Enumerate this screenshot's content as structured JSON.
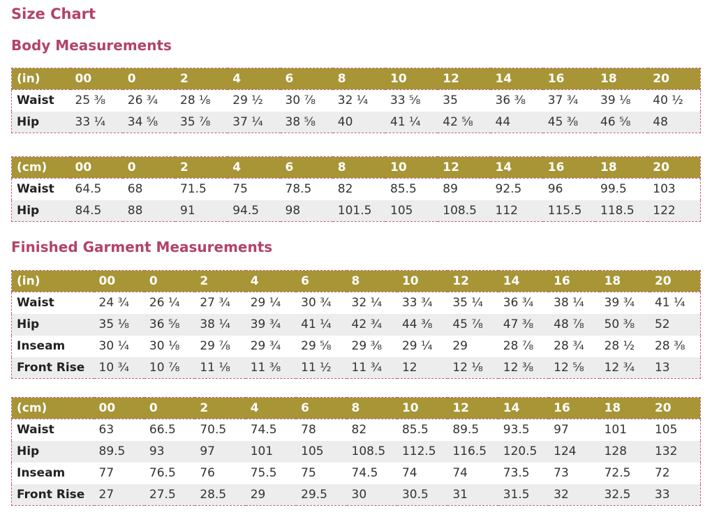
{
  "title": "Size Chart",
  "colors": {
    "heading": "#b2426b",
    "header_row": "#a79536",
    "stripe": "#ededed",
    "border": "#c35d7c"
  },
  "sections": [
    {
      "title": "Body Measurements",
      "tables": [
        {
          "unit": "(in)",
          "sizes": [
            "00",
            "0",
            "2",
            "4",
            "6",
            "8",
            "10",
            "12",
            "14",
            "16",
            "18",
            "20"
          ],
          "rows": [
            {
              "label": "Waist",
              "values": [
                "25 ⅜",
                "26 ¾",
                "28 ⅛",
                "29 ½",
                "30 ⅞",
                "32 ¼",
                "33 ⅝",
                "35",
                "36 ⅜",
                "37 ¾",
                "39 ⅛",
                "40 ½"
              ]
            },
            {
              "label": "Hip",
              "values": [
                "33 ¼",
                "34 ⅝",
                "35 ⅞",
                "37 ¼",
                "38 ⅝",
                "40",
                "41 ¼",
                "42 ⅝",
                "44",
                "45 ⅜",
                "46 ⅝",
                "48"
              ]
            }
          ]
        },
        {
          "unit": "(cm)",
          "sizes": [
            "00",
            "0",
            "2",
            "4",
            "6",
            "8",
            "10",
            "12",
            "14",
            "16",
            "18",
            "20"
          ],
          "rows": [
            {
              "label": "Waist",
              "values": [
                "64.5",
                "68",
                "71.5",
                "75",
                "78.5",
                "82",
                "85.5",
                "89",
                "92.5",
                "96",
                "99.5",
                "103"
              ]
            },
            {
              "label": "Hip",
              "values": [
                "84.5",
                "88",
                "91",
                "94.5",
                "98",
                "101.5",
                "105",
                "108.5",
                "112",
                "115.5",
                "118.5",
                "122"
              ]
            }
          ]
        }
      ]
    },
    {
      "title": "Finished Garment Measurements",
      "tables": [
        {
          "unit": "(in)",
          "sizes": [
            "00",
            "0",
            "2",
            "4",
            "6",
            "8",
            "10",
            "12",
            "14",
            "16",
            "18",
            "20"
          ],
          "rows": [
            {
              "label": "Waist",
              "values": [
                "24 ¾",
                "26 ¼",
                "27 ¾",
                "29 ¼",
                "30 ¾",
                "32 ¼",
                "33 ¾",
                "35 ¼",
                "36 ¾",
                "38 ¼",
                "39 ¾",
                "41 ¼"
              ]
            },
            {
              "label": "Hip",
              "values": [
                "35 ⅛",
                "36 ⅝",
                "38 ¼",
                "39 ¾",
                "41 ¼",
                "42 ¾",
                "44 ⅜",
                "45 ⅞",
                "47 ⅜",
                "48 ⅞",
                "50 ⅜",
                "52"
              ]
            },
            {
              "label": "Inseam",
              "values": [
                "30 ¼",
                "30 ⅛",
                "29 ⅞",
                "29 ¾",
                "29 ⅝",
                "29 ⅜",
                "29 ¼",
                "29",
                "28 ⅞",
                "28 ¾",
                "28 ½",
                "28 ⅜"
              ]
            },
            {
              "label": "Front Rise",
              "values": [
                "10 ¾",
                "10 ⅞",
                "11 ⅛",
                "11 ⅜",
                "11 ½",
                "11 ¾",
                "12",
                "12 ⅛",
                "12 ⅜",
                "12 ⅝",
                "12 ¾",
                "13"
              ]
            }
          ]
        },
        {
          "unit": "(cm)",
          "sizes": [
            "00",
            "0",
            "2",
            "4",
            "6",
            "8",
            "10",
            "12",
            "14",
            "16",
            "18",
            "20"
          ],
          "rows": [
            {
              "label": "Waist",
              "values": [
                "63",
                "66.5",
                "70.5",
                "74.5",
                "78",
                "82",
                "85.5",
                "89.5",
                "93.5",
                "97",
                "101",
                "105"
              ]
            },
            {
              "label": "Hip",
              "values": [
                "89.5",
                "93",
                "97",
                "101",
                "105",
                "108.5",
                "112.5",
                "116.5",
                "120.5",
                "124",
                "128",
                "132"
              ]
            },
            {
              "label": "Inseam",
              "values": [
                "77",
                "76.5",
                "76",
                "75.5",
                "75",
                "74.5",
                "74",
                "74",
                "73.5",
                "73",
                "72.5",
                "72"
              ]
            },
            {
              "label": "Front Rise",
              "values": [
                "27",
                "27.5",
                "28.5",
                "29",
                "29.5",
                "30",
                "30.5",
                "31",
                "31.5",
                "32",
                "32.5",
                "33"
              ]
            }
          ]
        }
      ]
    }
  ]
}
